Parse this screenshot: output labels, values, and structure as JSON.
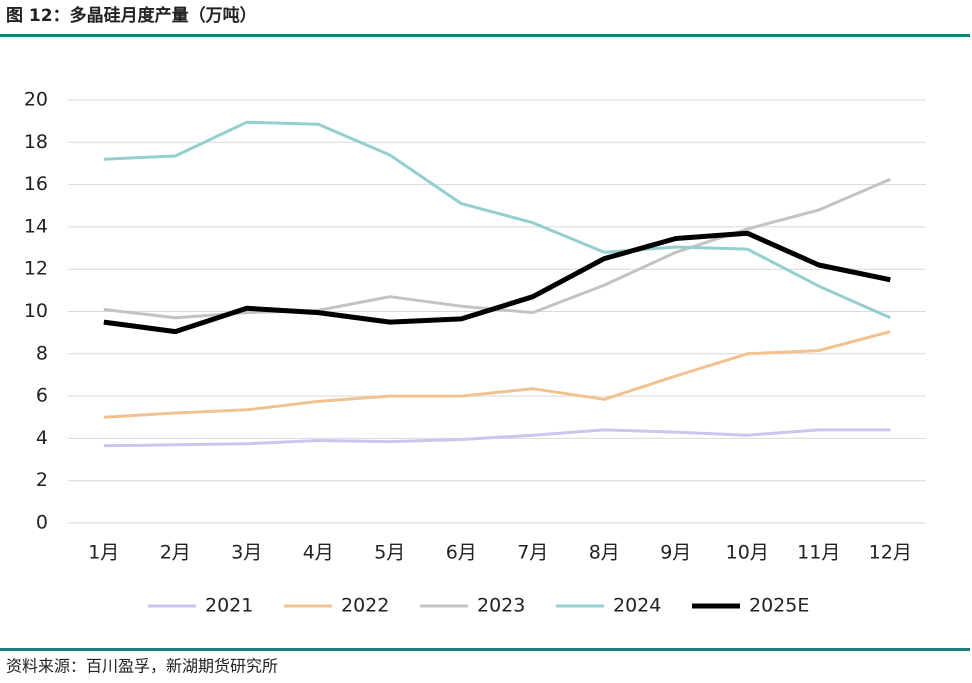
{
  "chart_data": {
    "type": "line",
    "title": "图 12：多晶硅月度产量（万吨）",
    "source": "资料来源：百川盈孚，新湖期货研究所",
    "categories": [
      "1月",
      "2月",
      "3月",
      "4月",
      "5月",
      "6月",
      "7月",
      "8月",
      "9月",
      "10月",
      "11月",
      "12月"
    ],
    "series": [
      {
        "name": "2021",
        "color": "#c9c6f2",
        "width": 3,
        "values": [
          3.65,
          3.7,
          3.75,
          3.9,
          3.85,
          3.95,
          4.15,
          4.4,
          4.3,
          4.15,
          4.4,
          4.4
        ]
      },
      {
        "name": "2022",
        "color": "#f2c28e",
        "width": 3,
        "values": [
          5.0,
          5.2,
          5.35,
          5.75,
          6.0,
          6.0,
          6.35,
          5.85,
          6.95,
          8.0,
          8.15,
          9.05
        ]
      },
      {
        "name": "2023",
        "color": "#c3c3c3",
        "width": 3,
        "values": [
          10.1,
          9.7,
          9.95,
          10.05,
          10.7,
          10.25,
          9.95,
          11.25,
          12.8,
          13.9,
          14.8,
          16.25
        ]
      },
      {
        "name": "2024",
        "color": "#93cfcf",
        "width": 3,
        "values": [
          17.2,
          17.35,
          18.95,
          18.85,
          17.4,
          15.1,
          14.2,
          12.8,
          13.05,
          12.95,
          11.2,
          9.7
        ]
      },
      {
        "name": "2025E",
        "color": "#000000",
        "width": 5,
        "values": [
          9.5,
          9.05,
          10.15,
          9.95,
          9.5,
          9.65,
          10.7,
          12.5,
          13.45,
          13.7,
          12.2,
          11.5
        ]
      }
    ],
    "ylim": [
      0,
      20
    ],
    "yticks": [
      0,
      2,
      4,
      6,
      8,
      10,
      12,
      14,
      16,
      18,
      20
    ],
    "grid": true,
    "legend": "bottom"
  }
}
